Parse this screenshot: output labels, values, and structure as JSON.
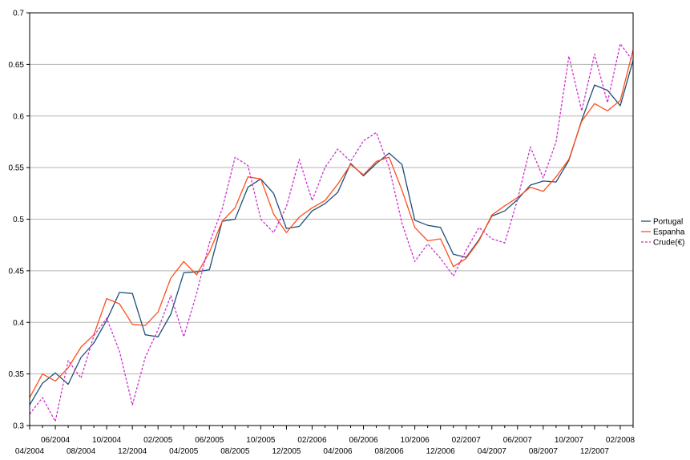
{
  "chart_data": {
    "type": "line",
    "title": "",
    "xlabel": "",
    "ylabel": "",
    "ylim": [
      0.3,
      0.7
    ],
    "yticks": [
      "0.3",
      "0.35",
      "0.4",
      "0.45",
      "0.5",
      "0.55",
      "0.6",
      "0.65",
      "0.7"
    ],
    "grid": true,
    "legend_position": "right",
    "x_labels_row1": [
      "06/2004",
      "10/2004",
      "02/2005",
      "06/2005",
      "10/2005",
      "02/2006",
      "06/2006",
      "10/2006",
      "02/2007",
      "06/2007",
      "10/2007",
      "02/2008"
    ],
    "x_labels_row2": [
      "04/2004",
      "08/2004",
      "12/2004",
      "04/2005",
      "08/2005",
      "12/2005",
      "04/2006",
      "08/2006",
      "12/2006",
      "04/2007",
      "08/2007",
      "12/2007"
    ],
    "x": [
      "04/2004",
      "05/2004",
      "06/2004",
      "07/2004",
      "08/2004",
      "09/2004",
      "10/2004",
      "11/2004",
      "12/2004",
      "01/2005",
      "02/2005",
      "03/2005",
      "04/2005",
      "05/2005",
      "06/2005",
      "07/2005",
      "08/2005",
      "09/2005",
      "10/2005",
      "11/2005",
      "12/2005",
      "01/2006",
      "02/2006",
      "03/2006",
      "04/2006",
      "05/2006",
      "06/2006",
      "07/2006",
      "08/2006",
      "09/2006",
      "10/2006",
      "11/2006",
      "12/2006",
      "01/2007",
      "02/2007",
      "03/2007",
      "04/2007",
      "05/2007",
      "06/2007",
      "07/2007",
      "08/2007",
      "09/2007",
      "10/2007",
      "11/2007",
      "12/2007",
      "01/2008",
      "02/2008",
      "03/2008"
    ],
    "series": [
      {
        "name": "Portugal",
        "color": "#1f4e79",
        "dash": "",
        "values": [
          0.32,
          0.341,
          0.351,
          0.34,
          0.366,
          0.38,
          0.402,
          0.429,
          0.428,
          0.388,
          0.386,
          0.408,
          0.448,
          0.449,
          0.451,
          0.498,
          0.5,
          0.531,
          0.539,
          0.525,
          0.491,
          0.493,
          0.508,
          0.515,
          0.526,
          0.554,
          0.542,
          0.554,
          0.564,
          0.553,
          0.499,
          0.494,
          0.492,
          0.466,
          0.463,
          0.48,
          0.503,
          0.508,
          0.519,
          0.533,
          0.537,
          0.536,
          0.557,
          0.596,
          0.63,
          0.625,
          0.61,
          0.654
        ]
      },
      {
        "name": "Espanha",
        "color": "#ff4e1a",
        "dash": "",
        "values": [
          0.327,
          0.35,
          0.343,
          0.356,
          0.376,
          0.388,
          0.423,
          0.418,
          0.398,
          0.397,
          0.41,
          0.443,
          0.459,
          0.446,
          0.468,
          0.498,
          0.511,
          0.541,
          0.539,
          0.505,
          0.487,
          0.502,
          0.511,
          0.518,
          0.534,
          0.553,
          0.543,
          0.556,
          0.56,
          0.528,
          0.492,
          0.479,
          0.481,
          0.454,
          0.462,
          0.479,
          0.504,
          0.513,
          0.521,
          0.531,
          0.527,
          0.541,
          0.558,
          0.595,
          0.612,
          0.605,
          0.615,
          0.664
        ]
      },
      {
        "name": "Crude(€)",
        "color": "#cc33cc",
        "dash": "3,2",
        "values": [
          0.311,
          0.327,
          0.304,
          0.363,
          0.346,
          0.387,
          0.404,
          0.372,
          0.32,
          0.366,
          0.393,
          0.426,
          0.386,
          0.428,
          0.477,
          0.51,
          0.56,
          0.552,
          0.5,
          0.487,
          0.512,
          0.558,
          0.518,
          0.55,
          0.568,
          0.556,
          0.576,
          0.584,
          0.55,
          0.496,
          0.459,
          0.476,
          0.462,
          0.445,
          0.47,
          0.492,
          0.481,
          0.477,
          0.519,
          0.57,
          0.54,
          0.575,
          0.658,
          0.605,
          0.66,
          0.613,
          0.67,
          0.653
        ]
      }
    ]
  }
}
